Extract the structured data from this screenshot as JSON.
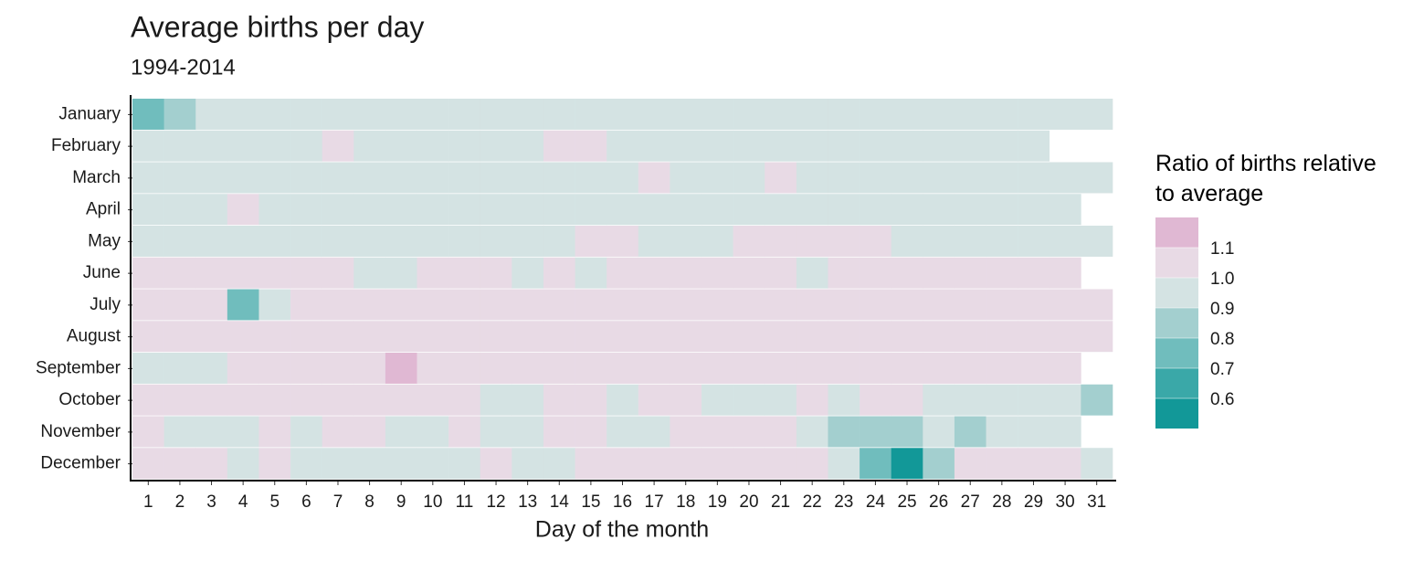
{
  "chart_data": {
    "type": "heatmap",
    "title": "Average births per day",
    "subtitle": "1994-2014",
    "x_label": "Day of the month",
    "legend_title": "Ratio of births relative to average",
    "x": [
      1,
      2,
      3,
      4,
      5,
      6,
      7,
      8,
      9,
      10,
      11,
      12,
      13,
      14,
      15,
      16,
      17,
      18,
      19,
      20,
      21,
      22,
      23,
      24,
      25,
      26,
      27,
      28,
      29,
      30,
      31
    ],
    "color_breaks": [
      0.6,
      0.7,
      0.8,
      0.9,
      {
        "value": 1,
        "label": "1.0"
      },
      1.1
    ],
    "colors": [
      "#129898",
      "#3aa8a8",
      "#70bdbd",
      "#a3cfcf",
      "#d4e3e3",
      "#e8dae5",
      "#e0b8d3"
    ],
    "series": [
      {
        "name": "January",
        "values": [
          0.75,
          0.85,
          0.95,
          0.95,
          0.95,
          0.95,
          0.95,
          0.95,
          0.95,
          0.95,
          0.95,
          0.95,
          0.95,
          0.95,
          0.95,
          0.95,
          0.95,
          0.95,
          0.95,
          0.95,
          0.95,
          0.95,
          0.95,
          0.95,
          0.95,
          0.95,
          0.95,
          0.95,
          0.95,
          0.95,
          0.95
        ]
      },
      {
        "name": "February",
        "values": [
          0.95,
          0.95,
          0.95,
          0.95,
          0.95,
          0.95,
          1.05,
          0.95,
          0.95,
          0.95,
          0.95,
          0.95,
          0.95,
          1.05,
          1.05,
          0.95,
          0.95,
          0.95,
          0.95,
          0.95,
          0.95,
          0.95,
          0.95,
          0.95,
          0.95,
          0.95,
          0.95,
          0.95,
          0.95,
          null,
          null
        ]
      },
      {
        "name": "March",
        "values": [
          0.95,
          0.95,
          0.95,
          0.95,
          0.95,
          0.95,
          0.95,
          0.95,
          0.95,
          0.95,
          0.95,
          0.95,
          0.95,
          0.95,
          0.95,
          0.95,
          1.05,
          0.95,
          0.95,
          0.95,
          1.05,
          0.95,
          0.95,
          0.95,
          0.95,
          0.95,
          0.95,
          0.95,
          0.95,
          0.95,
          0.95
        ]
      },
      {
        "name": "April",
        "values": [
          0.95,
          0.95,
          0.95,
          1.05,
          0.95,
          0.95,
          0.95,
          0.95,
          0.95,
          0.95,
          0.95,
          0.95,
          0.95,
          0.95,
          0.95,
          0.95,
          0.95,
          0.95,
          0.95,
          0.95,
          0.95,
          0.95,
          0.95,
          0.95,
          0.95,
          0.95,
          0.95,
          0.95,
          0.95,
          0.95,
          null
        ]
      },
      {
        "name": "May",
        "values": [
          0.95,
          0.95,
          0.95,
          0.95,
          0.95,
          0.95,
          0.95,
          0.95,
          0.95,
          0.95,
          0.95,
          0.95,
          0.95,
          0.95,
          1.05,
          1.05,
          0.95,
          0.95,
          0.95,
          1.05,
          1.05,
          1.05,
          1.05,
          1.05,
          0.95,
          0.95,
          0.95,
          0.95,
          0.95,
          0.95,
          0.95
        ]
      },
      {
        "name": "June",
        "values": [
          1.05,
          1.05,
          1.05,
          1.05,
          1.05,
          1.05,
          1.05,
          0.95,
          0.95,
          1.05,
          1.05,
          1.05,
          0.95,
          1.05,
          0.95,
          1.05,
          1.05,
          1.05,
          1.05,
          1.05,
          1.05,
          0.95,
          1.05,
          1.05,
          1.05,
          1.05,
          1.05,
          1.05,
          1.05,
          1.05,
          null
        ]
      },
      {
        "name": "July",
        "values": [
          1.05,
          1.05,
          1.05,
          0.75,
          0.95,
          1.05,
          1.05,
          1.05,
          1.05,
          1.05,
          1.05,
          1.05,
          1.05,
          1.05,
          1.05,
          1.05,
          1.05,
          1.05,
          1.05,
          1.05,
          1.05,
          1.05,
          1.05,
          1.05,
          1.05,
          1.05,
          1.05,
          1.05,
          1.05,
          1.05,
          1.05
        ]
      },
      {
        "name": "August",
        "values": [
          1.05,
          1.05,
          1.05,
          1.05,
          1.05,
          1.05,
          1.05,
          1.05,
          1.05,
          1.05,
          1.05,
          1.05,
          1.05,
          1.05,
          1.05,
          1.05,
          1.05,
          1.05,
          1.05,
          1.05,
          1.05,
          1.05,
          1.05,
          1.05,
          1.05,
          1.05,
          1.05,
          1.05,
          1.05,
          1.05,
          1.05
        ]
      },
      {
        "name": "September",
        "values": [
          0.95,
          0.95,
          0.95,
          1.05,
          1.05,
          1.05,
          1.05,
          1.05,
          1.12,
          1.05,
          1.05,
          1.05,
          1.05,
          1.05,
          1.05,
          1.05,
          1.05,
          1.05,
          1.05,
          1.05,
          1.05,
          1.05,
          1.05,
          1.05,
          1.05,
          1.05,
          1.05,
          1.05,
          1.05,
          1.05,
          null
        ]
      },
      {
        "name": "October",
        "values": [
          1.05,
          1.05,
          1.05,
          1.05,
          1.05,
          1.05,
          1.05,
          1.05,
          1.05,
          1.05,
          1.05,
          0.95,
          0.95,
          1.05,
          1.05,
          0.95,
          1.05,
          1.05,
          0.95,
          0.95,
          0.95,
          1.05,
          0.95,
          1.05,
          1.05,
          0.95,
          0.95,
          0.95,
          0.95,
          0.95,
          0.85
        ]
      },
      {
        "name": "November",
        "values": [
          1.05,
          0.95,
          0.95,
          0.95,
          1.05,
          0.95,
          1.05,
          1.05,
          0.95,
          0.95,
          1.05,
          0.95,
          0.95,
          1.05,
          1.05,
          0.95,
          0.95,
          1.05,
          1.05,
          1.05,
          1.05,
          0.95,
          0.85,
          0.85,
          0.85,
          0.95,
          0.85,
          0.95,
          0.95,
          0.95,
          null
        ]
      },
      {
        "name": "December",
        "values": [
          1.05,
          1.05,
          1.05,
          0.95,
          1.05,
          0.95,
          0.95,
          0.95,
          0.95,
          0.95,
          0.95,
          1.05,
          0.95,
          0.95,
          1.05,
          1.05,
          1.05,
          1.05,
          1.05,
          1.05,
          1.05,
          1.05,
          0.95,
          0.75,
          0.55,
          0.85,
          1.05,
          1.05,
          1.05,
          1.05,
          0.95
        ]
      }
    ]
  }
}
